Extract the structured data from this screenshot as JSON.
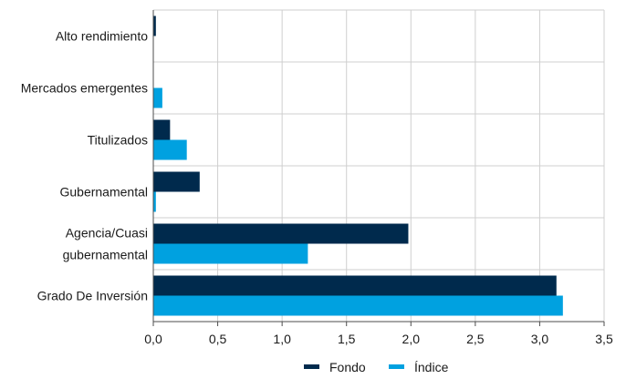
{
  "chart_data": {
    "type": "bar",
    "orientation": "horizontal",
    "categories": [
      [
        "Alto rendimiento"
      ],
      [
        "Mercados emergentes"
      ],
      [
        "Titulizados"
      ],
      [
        "Gubernamental"
      ],
      [
        "Agencia/Cuasi",
        "gubernamental"
      ],
      [
        "Grado De Inversión"
      ]
    ],
    "series": [
      {
        "name": "Fondo",
        "color": "#002a4d",
        "values": [
          0.02,
          0.0,
          0.13,
          0.36,
          1.98,
          3.13
        ]
      },
      {
        "name": "Índice",
        "color": "#00a1e0",
        "values": [
          0.0,
          0.07,
          0.26,
          0.02,
          1.2,
          3.18
        ]
      }
    ],
    "xlim": [
      0,
      3.5
    ],
    "x_ticks": [
      "0,0",
      "0,5",
      "1,0",
      "1,5",
      "2,0",
      "2,5",
      "3,0",
      "3,5"
    ],
    "grid": true,
    "legend_position": "bottom-center",
    "title": "",
    "xlabel": "",
    "ylabel": ""
  }
}
